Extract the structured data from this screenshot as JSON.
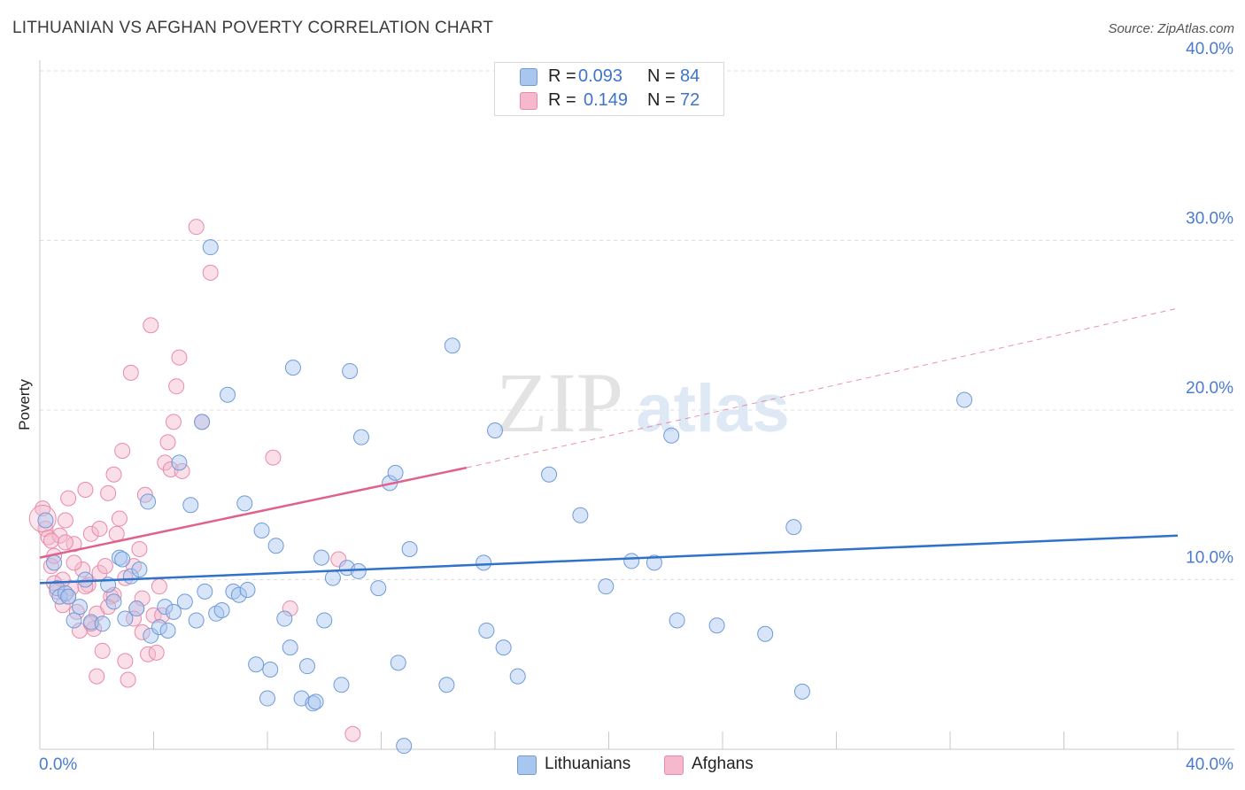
{
  "header": {
    "title": "LITHUANIAN VS AFGHAN POVERTY CORRELATION CHART",
    "source": "Source: ZipAtlas.com"
  },
  "watermark": {
    "zip": "ZIP",
    "atlas": "atlas"
  },
  "legend_top": {
    "rows": [
      {
        "r_label": "R =",
        "r_value": "0.093",
        "n_label": "N =",
        "n_value": "84",
        "color": "#a9c6ef"
      },
      {
        "r_label": "R =",
        "r_value": "0.149",
        "n_label": "N =",
        "n_value": "72",
        "color": "#f5b8cc"
      }
    ]
  },
  "legend_bottom": {
    "items": [
      {
        "label": "Lithuanians",
        "color": "#a9c6ef"
      },
      {
        "label": "Afghans",
        "color": "#f5b8cc"
      }
    ]
  },
  "colors": {
    "blue_fill": "#a9c6ef",
    "blue_stroke": "#6f9bd9",
    "blue_line": "#2f72c9",
    "pink_fill": "#f5b8cc",
    "pink_stroke": "#e88aa8",
    "pink_line": "#e0628c",
    "grid": "#dddddd",
    "tick_text": "#4a7bd0"
  },
  "chart_data": {
    "type": "scatter",
    "title": "LITHUANIAN VS AFGHAN POVERTY CORRELATION CHART",
    "xlabel": "",
    "ylabel": "Poverty",
    "xlim": [
      0,
      40
    ],
    "ylim": [
      0,
      40
    ],
    "x_ticks": [
      0,
      40
    ],
    "x_tick_labels": [
      "0.0%",
      "40.0%"
    ],
    "y_ticks": [
      10,
      20,
      30,
      40
    ],
    "y_tick_labels": [
      "10.0%",
      "20.0%",
      "30.0%",
      "40.0%"
    ],
    "grid": true,
    "legend": "bottom-center",
    "series": [
      {
        "name": "Lithuanians",
        "r": 0.093,
        "n": 84,
        "trend": {
          "x": [
            0,
            40
          ],
          "y": [
            9.8,
            12.6
          ]
        },
        "points": [
          [
            0.2,
            13.5
          ],
          [
            0.5,
            11.0
          ],
          [
            0.6,
            9.5
          ],
          [
            0.7,
            9.0
          ],
          [
            0.9,
            9.2
          ],
          [
            1.0,
            9.0
          ],
          [
            1.2,
            7.6
          ],
          [
            1.4,
            8.4
          ],
          [
            1.6,
            10.0
          ],
          [
            1.8,
            7.5
          ],
          [
            2.2,
            7.4
          ],
          [
            2.4,
            9.7
          ],
          [
            2.6,
            8.7
          ],
          [
            2.8,
            11.3
          ],
          [
            3.0,
            7.7
          ],
          [
            3.2,
            10.2
          ],
          [
            3.4,
            8.3
          ],
          [
            3.5,
            10.6
          ],
          [
            3.8,
            14.6
          ],
          [
            3.9,
            6.7
          ],
          [
            4.2,
            7.2
          ],
          [
            4.4,
            8.4
          ],
          [
            4.5,
            7.0
          ],
          [
            4.7,
            8.1
          ],
          [
            4.9,
            16.9
          ],
          [
            5.1,
            8.7
          ],
          [
            5.3,
            14.4
          ],
          [
            5.5,
            7.6
          ],
          [
            5.7,
            19.3
          ],
          [
            5.8,
            9.3
          ],
          [
            6.0,
            29.6
          ],
          [
            6.2,
            8.0
          ],
          [
            6.4,
            8.2
          ],
          [
            6.6,
            20.9
          ],
          [
            6.8,
            9.3
          ],
          [
            7.0,
            9.1
          ],
          [
            7.2,
            14.5
          ],
          [
            7.3,
            9.4
          ],
          [
            7.6,
            5.0
          ],
          [
            7.8,
            12.9
          ],
          [
            8.0,
            3.0
          ],
          [
            8.1,
            4.7
          ],
          [
            8.3,
            12.0
          ],
          [
            8.6,
            7.7
          ],
          [
            8.8,
            6.0
          ],
          [
            8.9,
            22.5
          ],
          [
            9.2,
            3.0
          ],
          [
            9.4,
            4.9
          ],
          [
            9.6,
            2.7
          ],
          [
            9.7,
            2.8
          ],
          [
            9.9,
            11.3
          ],
          [
            10.0,
            7.6
          ],
          [
            10.3,
            10.1
          ],
          [
            10.6,
            3.8
          ],
          [
            10.8,
            10.7
          ],
          [
            10.9,
            22.3
          ],
          [
            11.2,
            10.5
          ],
          [
            11.3,
            18.4
          ],
          [
            11.9,
            9.5
          ],
          [
            12.3,
            15.7
          ],
          [
            12.5,
            16.3
          ],
          [
            12.6,
            5.1
          ],
          [
            12.8,
            0.2
          ],
          [
            13.0,
            11.8
          ],
          [
            14.3,
            3.8
          ],
          [
            14.5,
            23.8
          ],
          [
            15.6,
            11.0
          ],
          [
            15.7,
            7.0
          ],
          [
            16.0,
            18.8
          ],
          [
            16.3,
            6.0
          ],
          [
            16.8,
            4.3
          ],
          [
            17.9,
            16.2
          ],
          [
            19.0,
            13.8
          ],
          [
            19.9,
            9.6
          ],
          [
            20.8,
            11.1
          ],
          [
            21.6,
            11.0
          ],
          [
            22.2,
            18.5
          ],
          [
            22.4,
            7.6
          ],
          [
            23.8,
            7.3
          ],
          [
            25.5,
            6.8
          ],
          [
            26.5,
            13.1
          ],
          [
            26.8,
            3.4
          ],
          [
            32.5,
            20.6
          ],
          [
            2.9,
            11.2
          ]
        ]
      },
      {
        "name": "Afghans",
        "r": 0.149,
        "n": 72,
        "trend": {
          "x": [
            0,
            15
          ],
          "y": [
            11.3,
            16.6
          ]
        },
        "trend_extension": {
          "x": [
            15,
            40
          ],
          "y": [
            16.6,
            26.0
          ]
        },
        "points": [
          [
            0.1,
            14.2
          ],
          [
            0.2,
            13.0
          ],
          [
            0.3,
            12.5
          ],
          [
            0.4,
            10.8
          ],
          [
            0.5,
            11.4
          ],
          [
            0.6,
            9.3
          ],
          [
            0.7,
            12.6
          ],
          [
            0.8,
            8.5
          ],
          [
            0.9,
            13.5
          ],
          [
            1.0,
            14.8
          ],
          [
            1.1,
            9.5
          ],
          [
            1.2,
            12.1
          ],
          [
            1.3,
            8.1
          ],
          [
            1.4,
            7.0
          ],
          [
            1.5,
            10.6
          ],
          [
            1.6,
            15.3
          ],
          [
            1.7,
            9.7
          ],
          [
            1.8,
            12.7
          ],
          [
            1.9,
            7.1
          ],
          [
            2.0,
            4.3
          ],
          [
            2.1,
            10.4
          ],
          [
            2.2,
            5.8
          ],
          [
            2.3,
            10.8
          ],
          [
            2.4,
            15.1
          ],
          [
            2.5,
            9.0
          ],
          [
            2.6,
            16.2
          ],
          [
            2.7,
            12.7
          ],
          [
            2.8,
            13.6
          ],
          [
            2.9,
            17.6
          ],
          [
            3.0,
            5.2
          ],
          [
            3.1,
            4.1
          ],
          [
            3.2,
            22.2
          ],
          [
            3.3,
            10.8
          ],
          [
            3.4,
            8.3
          ],
          [
            3.5,
            11.8
          ],
          [
            3.6,
            6.9
          ],
          [
            3.7,
            15.0
          ],
          [
            3.8,
            5.6
          ],
          [
            3.9,
            25.0
          ],
          [
            4.0,
            7.9
          ],
          [
            4.1,
            5.7
          ],
          [
            4.2,
            9.6
          ],
          [
            4.3,
            7.9
          ],
          [
            4.4,
            16.9
          ],
          [
            4.5,
            18.1
          ],
          [
            4.6,
            16.5
          ],
          [
            4.7,
            19.3
          ],
          [
            4.8,
            21.4
          ],
          [
            4.9,
            23.1
          ],
          [
            5.0,
            16.4
          ],
          [
            5.5,
            30.8
          ],
          [
            5.7,
            19.3
          ],
          [
            6.0,
            28.1
          ],
          [
            8.2,
            17.2
          ],
          [
            8.8,
            8.3
          ],
          [
            10.5,
            11.2
          ],
          [
            11.0,
            0.9
          ],
          [
            0.4,
            12.3
          ],
          [
            1.0,
            9.0
          ],
          [
            2.0,
            8.0
          ],
          [
            3.0,
            10.1
          ],
          [
            0.8,
            10.0
          ],
          [
            1.6,
            9.6
          ],
          [
            2.4,
            8.4
          ],
          [
            1.2,
            11.0
          ],
          [
            0.5,
            9.8
          ],
          [
            1.8,
            7.4
          ],
          [
            2.6,
            9.1
          ],
          [
            3.3,
            7.7
          ],
          [
            0.9,
            12.2
          ],
          [
            2.1,
            13.0
          ],
          [
            3.6,
            8.9
          ]
        ]
      }
    ]
  }
}
